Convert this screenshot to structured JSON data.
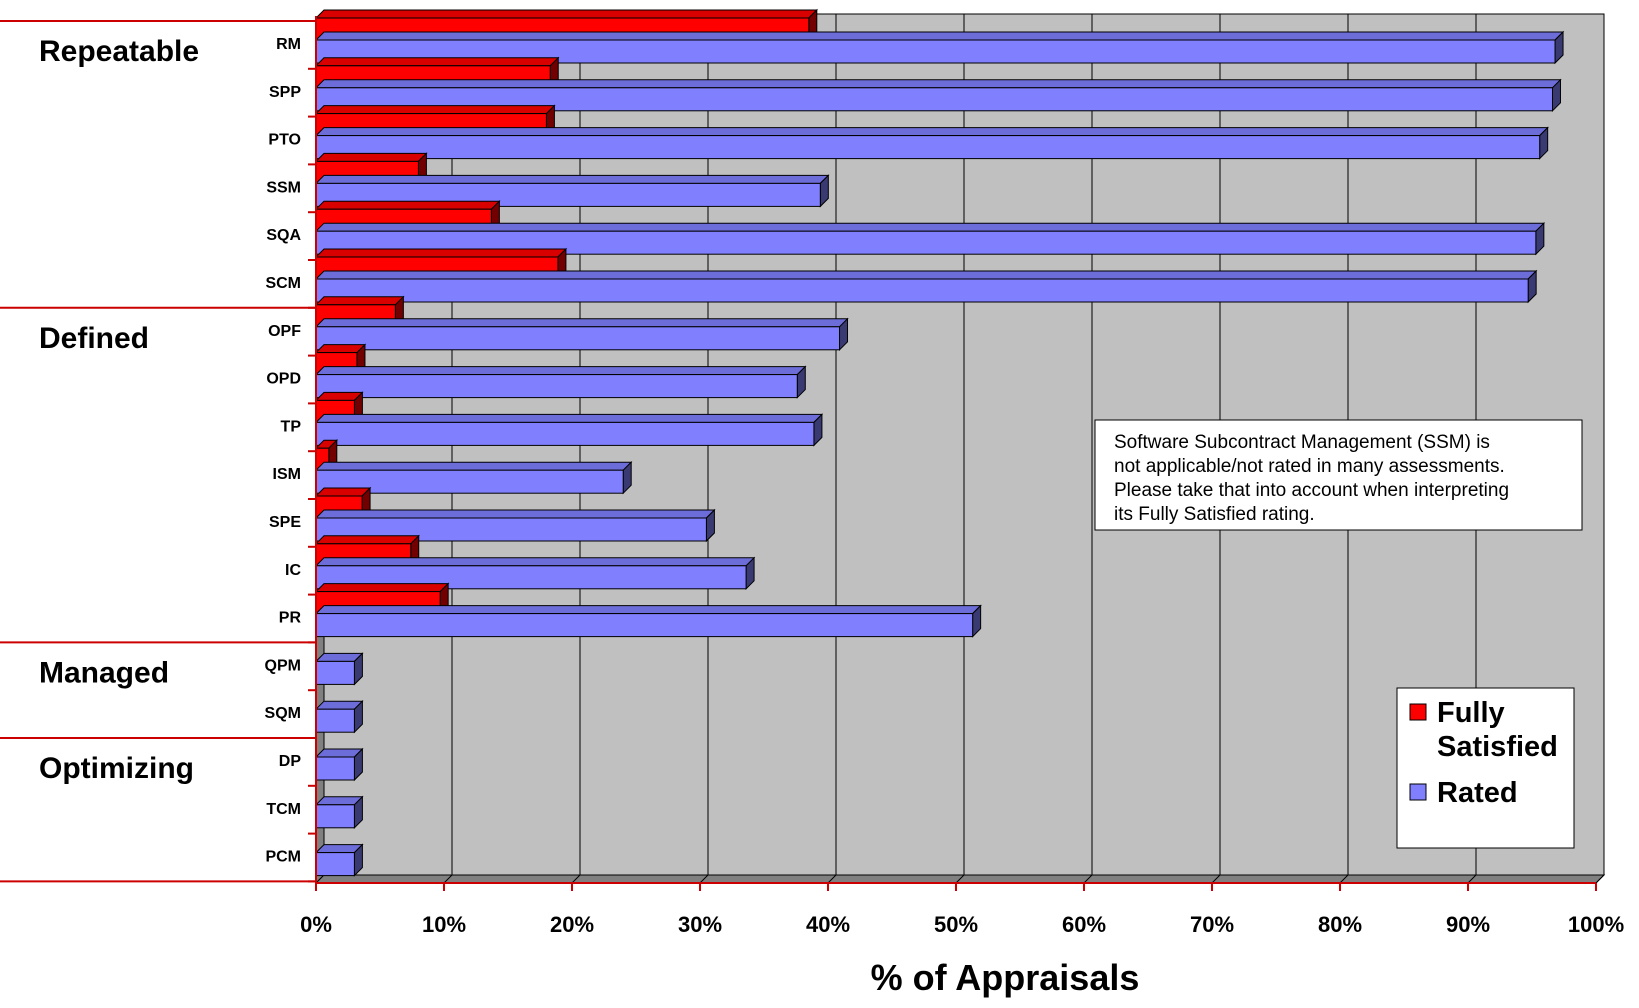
{
  "chart_data": {
    "type": "bar",
    "orientation": "horizontal",
    "categories": [
      "RM",
      "SPP",
      "PTO",
      "SSM",
      "SQA",
      "SCM",
      "OPF",
      "OPD",
      "TP",
      "ISM",
      "SPE",
      "IC",
      "PR",
      "QPM",
      "SQM",
      "DP",
      "TCM",
      "PCM"
    ],
    "series": [
      {
        "name": "Fully Satisfied",
        "color": "#ff0000",
        "values": [
          38.5,
          18.3,
          18.0,
          8.0,
          13.7,
          18.9,
          6.2,
          3.2,
          3.0,
          1.0,
          3.6,
          7.4,
          9.7,
          0,
          0,
          0,
          0,
          0
        ]
      },
      {
        "name": "Rated",
        "color": "#8080ff",
        "values": [
          96.8,
          96.6,
          95.6,
          39.4,
          95.3,
          94.7,
          40.9,
          37.6,
          38.9,
          24.0,
          30.5,
          33.6,
          51.3,
          3.0,
          3.0,
          3.0,
          3.0,
          3.0
        ]
      }
    ],
    "groups": [
      {
        "label": "Repeatable",
        "first": 0,
        "last": 5
      },
      {
        "label": "Defined",
        "first": 6,
        "last": 12
      },
      {
        "label": "Managed",
        "first": 13,
        "last": 14
      },
      {
        "label": "Optimizing",
        "first": 15,
        "last": 17
      }
    ],
    "xlabel": "% of Appraisals",
    "ylabel": "",
    "xlim": [
      0,
      100
    ],
    "xticks": [
      "0%",
      "10%",
      "20%",
      "30%",
      "40%",
      "50%",
      "60%",
      "70%",
      "80%",
      "90%",
      "100%"
    ],
    "grid": true,
    "legend_position": "bottom-right",
    "annotation": [
      "Software Subcontract Management (SSM) is",
      "not applicable/not rated in many assessments.",
      "Please take that into account when interpreting",
      "its Fully Satisfied rating."
    ],
    "legend": {
      "fully_satisfied_lines": [
        "Fully",
        "Satisfied"
      ],
      "rated": "Rated"
    },
    "colors": {
      "plot_background": "#c0c0c0",
      "floor": "#808080",
      "axis_line": "#cc0000",
      "grid": "#000000"
    }
  }
}
